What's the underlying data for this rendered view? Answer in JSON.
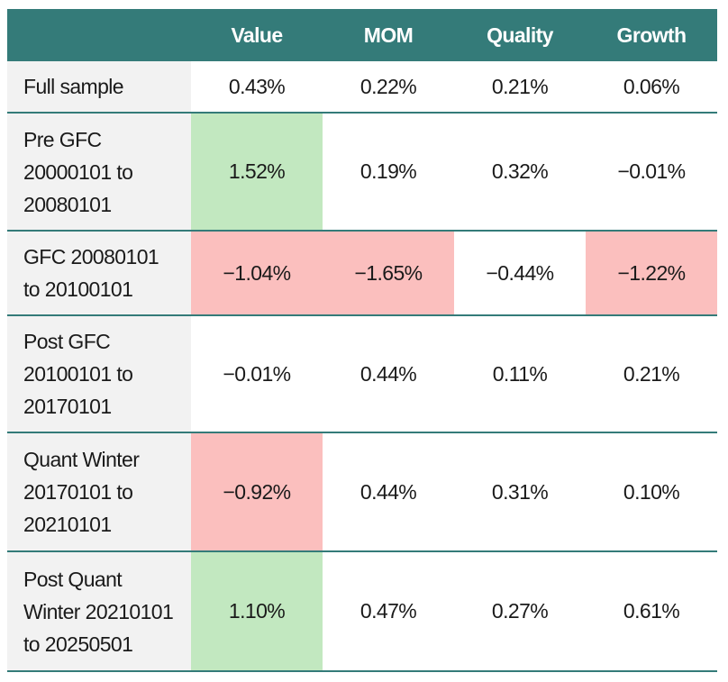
{
  "table": {
    "header_color": "#347b79",
    "label_background": "#f2f2f2",
    "columns": [
      "Value",
      "MOM",
      "Quality",
      "Growth"
    ],
    "rows": [
      {
        "label": [
          "Full sample"
        ],
        "cells": [
          "0.43%",
          "0.22%",
          "0.21%",
          "0.06%"
        ],
        "fills": [
          null,
          null,
          null,
          null
        ]
      },
      {
        "label": [
          "Pre GFC",
          "20000101 to",
          "20080101"
        ],
        "cells": [
          "1.52%",
          "0.19%",
          "0.32%",
          "−0.01%"
        ],
        "fills": [
          "#c2e8c0",
          null,
          null,
          null
        ]
      },
      {
        "label": [
          "GFC 20080101",
          "to 20100101"
        ],
        "cells": [
          "−1.04%",
          "−1.65%",
          "−0.44%",
          "−1.22%"
        ],
        "fills": [
          "#fbbfbe",
          "#fbbfbe",
          null,
          "#fbbfbe"
        ]
      },
      {
        "label": [
          "Post GFC",
          "20100101 to",
          "20170101"
        ],
        "cells": [
          "−0.01%",
          "0.44%",
          "0.11%",
          "0.21%"
        ],
        "fills": [
          null,
          null,
          null,
          null
        ]
      },
      {
        "label": [
          "Quant Winter",
          "20170101 to",
          "20210101"
        ],
        "cells": [
          "−0.92%",
          "0.44%",
          "0.31%",
          "0.10%"
        ],
        "fills": [
          "#fbbfbe",
          null,
          null,
          null
        ]
      },
      {
        "label": [
          "Post Quant",
          "Winter 20210101",
          "to 20250501"
        ],
        "cells": [
          "1.10%",
          "0.47%",
          "0.27%",
          "0.61%"
        ],
        "fills": [
          "#c2e8c0",
          null,
          null,
          null
        ]
      }
    ]
  }
}
